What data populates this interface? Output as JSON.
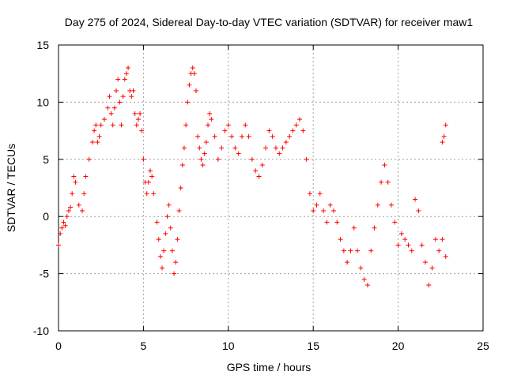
{
  "chart_data": {
    "type": "scatter",
    "title": "Day 275 of 2024, Sidereal Day-to-day VTEC variation (SDTVAR) for receiver maw1",
    "xlabel": "GPS time / hours",
    "ylabel": "SDTVAR / TECUs",
    "xlim": [
      0,
      25
    ],
    "ylim": [
      -10,
      15
    ],
    "xticks": [
      0,
      5,
      10,
      15,
      20,
      25
    ],
    "yticks": [
      -10,
      -5,
      0,
      5,
      10,
      15
    ],
    "xtick_labels": [
      "0",
      "5",
      "10",
      "15",
      "20",
      "25"
    ],
    "ytick_labels": [
      "-10",
      "-5",
      "0",
      "5",
      "10",
      "15"
    ],
    "grid": true,
    "marker": "+",
    "series_color": "#ff0000",
    "series": [
      {
        "name": "SDTVAR",
        "points": [
          [
            0.0,
            -2.5
          ],
          [
            0.1,
            -1.5
          ],
          [
            0.2,
            -1.0
          ],
          [
            0.3,
            -0.5
          ],
          [
            0.4,
            -0.8
          ],
          [
            0.5,
            0.0
          ],
          [
            0.6,
            0.5
          ],
          [
            0.7,
            0.8
          ],
          [
            0.8,
            2.0
          ],
          [
            0.9,
            3.5
          ],
          [
            1.0,
            3.0
          ],
          [
            1.2,
            1.0
          ],
          [
            1.4,
            0.5
          ],
          [
            1.5,
            2.0
          ],
          [
            1.6,
            3.5
          ],
          [
            1.8,
            5.0
          ],
          [
            2.0,
            6.5
          ],
          [
            2.1,
            7.5
          ],
          [
            2.2,
            8.0
          ],
          [
            2.3,
            6.5
          ],
          [
            2.4,
            7.0
          ],
          [
            2.5,
            8.0
          ],
          [
            2.7,
            8.5
          ],
          [
            2.9,
            9.5
          ],
          [
            3.0,
            10.5
          ],
          [
            3.1,
            9.0
          ],
          [
            3.2,
            8.0
          ],
          [
            3.3,
            9.5
          ],
          [
            3.4,
            11.0
          ],
          [
            3.5,
            12.0
          ],
          [
            3.6,
            10.0
          ],
          [
            3.7,
            8.0
          ],
          [
            3.8,
            10.5
          ],
          [
            3.9,
            12.0
          ],
          [
            4.0,
            12.5
          ],
          [
            4.1,
            13.0
          ],
          [
            4.2,
            11.0
          ],
          [
            4.3,
            10.5
          ],
          [
            4.4,
            11.0
          ],
          [
            4.5,
            9.0
          ],
          [
            4.6,
            8.0
          ],
          [
            4.7,
            8.5
          ],
          [
            4.8,
            9.0
          ],
          [
            4.9,
            7.5
          ],
          [
            5.0,
            5.0
          ],
          [
            5.1,
            3.0
          ],
          [
            5.2,
            2.0
          ],
          [
            5.3,
            3.0
          ],
          [
            5.4,
            4.0
          ],
          [
            5.5,
            3.5
          ],
          [
            5.6,
            2.0
          ],
          [
            5.8,
            -0.5
          ],
          [
            5.9,
            -2.0
          ],
          [
            6.0,
            -3.5
          ],
          [
            6.1,
            -4.5
          ],
          [
            6.2,
            -3.0
          ],
          [
            6.3,
            -1.5
          ],
          [
            6.4,
            0.0
          ],
          [
            6.5,
            1.0
          ],
          [
            6.6,
            -1.0
          ],
          [
            6.7,
            -3.0
          ],
          [
            6.8,
            -5.0
          ],
          [
            6.9,
            -4.0
          ],
          [
            7.0,
            -2.0
          ],
          [
            7.1,
            0.5
          ],
          [
            7.2,
            2.5
          ],
          [
            7.3,
            4.5
          ],
          [
            7.4,
            6.0
          ],
          [
            7.5,
            8.0
          ],
          [
            7.6,
            10.0
          ],
          [
            7.7,
            11.5
          ],
          [
            7.8,
            12.5
          ],
          [
            7.9,
            13.0
          ],
          [
            8.0,
            12.5
          ],
          [
            8.1,
            11.0
          ],
          [
            8.2,
            7.0
          ],
          [
            8.3,
            6.0
          ],
          [
            8.4,
            5.0
          ],
          [
            8.5,
            4.5
          ],
          [
            8.6,
            5.5
          ],
          [
            8.7,
            6.5
          ],
          [
            8.8,
            8.0
          ],
          [
            8.9,
            9.0
          ],
          [
            9.0,
            8.5
          ],
          [
            9.2,
            7.0
          ],
          [
            9.4,
            5.0
          ],
          [
            9.6,
            6.0
          ],
          [
            9.8,
            7.5
          ],
          [
            10.0,
            8.0
          ],
          [
            10.2,
            7.0
          ],
          [
            10.4,
            6.0
          ],
          [
            10.6,
            5.5
          ],
          [
            10.8,
            7.0
          ],
          [
            11.0,
            8.0
          ],
          [
            11.2,
            7.0
          ],
          [
            11.4,
            5.0
          ],
          [
            11.6,
            4.0
          ],
          [
            11.8,
            3.5
          ],
          [
            12.0,
            4.5
          ],
          [
            12.2,
            6.0
          ],
          [
            12.4,
            7.5
          ],
          [
            12.6,
            7.0
          ],
          [
            12.8,
            6.0
          ],
          [
            13.0,
            5.5
          ],
          [
            13.2,
            6.0
          ],
          [
            13.4,
            6.5
          ],
          [
            13.6,
            7.0
          ],
          [
            13.8,
            7.5
          ],
          [
            14.0,
            8.0
          ],
          [
            14.2,
            8.5
          ],
          [
            14.4,
            7.5
          ],
          [
            14.6,
            5.0
          ],
          [
            14.8,
            2.0
          ],
          [
            15.0,
            0.5
          ],
          [
            15.2,
            1.0
          ],
          [
            15.4,
            2.0
          ],
          [
            15.6,
            0.5
          ],
          [
            15.8,
            -0.5
          ],
          [
            16.0,
            1.0
          ],
          [
            16.2,
            0.5
          ],
          [
            16.4,
            -0.5
          ],
          [
            16.6,
            -2.0
          ],
          [
            16.8,
            -3.0
          ],
          [
            17.0,
            -4.0
          ],
          [
            17.2,
            -3.0
          ],
          [
            17.4,
            -1.0
          ],
          [
            17.6,
            -3.0
          ],
          [
            17.8,
            -4.5
          ],
          [
            18.0,
            -5.5
          ],
          [
            18.2,
            -6.0
          ],
          [
            18.4,
            -3.0
          ],
          [
            18.6,
            -1.0
          ],
          [
            18.8,
            1.0
          ],
          [
            19.0,
            3.0
          ],
          [
            19.2,
            4.5
          ],
          [
            19.4,
            3.0
          ],
          [
            19.6,
            1.0
          ],
          [
            19.8,
            -0.5
          ],
          [
            20.0,
            -2.5
          ],
          [
            20.2,
            -1.5
          ],
          [
            20.4,
            -2.0
          ],
          [
            20.6,
            -2.5
          ],
          [
            20.8,
            -3.0
          ],
          [
            21.0,
            1.5
          ],
          [
            21.2,
            0.5
          ],
          [
            21.4,
            -2.5
          ],
          [
            21.6,
            -4.0
          ],
          [
            21.8,
            -6.0
          ],
          [
            22.0,
            -4.5
          ],
          [
            22.2,
            -2.0
          ],
          [
            22.4,
            -3.0
          ],
          [
            22.6,
            -2.0
          ],
          [
            22.8,
            -3.5
          ],
          [
            22.6,
            6.5
          ],
          [
            22.7,
            7.0
          ],
          [
            22.8,
            8.0
          ]
        ]
      }
    ]
  }
}
